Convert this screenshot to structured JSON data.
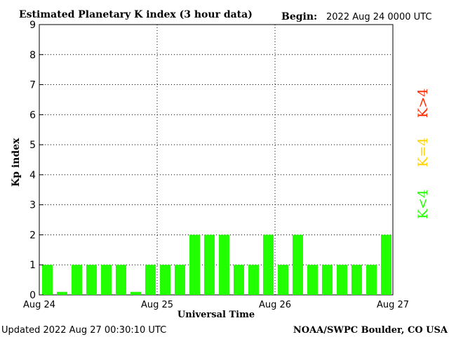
{
  "header": {
    "title": "Estimated Planetary K index (3 hour data)",
    "begin_label": "Begin:",
    "begin_value": "2022 Aug 24 0000 UTC"
  },
  "footer": {
    "updated": "Updated 2022 Aug 27 00:30:10 UTC",
    "source": "NOAA/SWPC Boulder, CO USA"
  },
  "legend": {
    "items": [
      {
        "label": "K>4",
        "color": "#ff2a00"
      },
      {
        "label": "K=4",
        "color": "#ffd200"
      },
      {
        "label": "K<4",
        "color": "#22ff00"
      }
    ]
  },
  "chart_data": {
    "type": "bar",
    "title": "Estimated Planetary K index (3 hour data)",
    "xlabel": "Universal Time",
    "ylabel": "Kp index",
    "ylim": [
      0,
      9
    ],
    "yticks": [
      "0",
      "1",
      "2",
      "3",
      "4",
      "5",
      "6",
      "7",
      "8",
      "9"
    ],
    "xticks": [
      "Aug 24",
      "Aug 25",
      "Aug 26",
      "Aug 27"
    ],
    "interval_hours": 3,
    "grid": true,
    "legend_position": "right",
    "bar_color": "#22ff00",
    "values": [
      1,
      0.1,
      1,
      1,
      1,
      1,
      0.1,
      1,
      1,
      1,
      2,
      2,
      2,
      1,
      1,
      2,
      1,
      2,
      1,
      1,
      1,
      1,
      1,
      2
    ]
  }
}
